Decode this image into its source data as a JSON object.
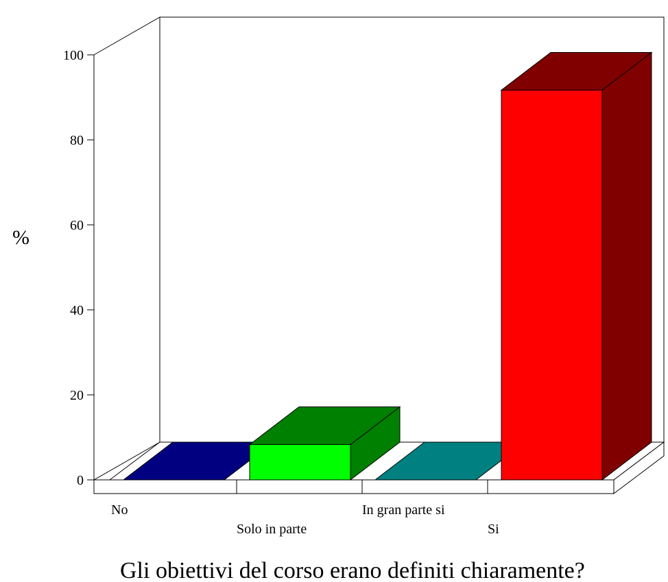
{
  "chart_data": {
    "type": "bar",
    "style": "3d",
    "title": "Gli obiettivi del corso erano definiti chiaramente?",
    "ylabel": "%",
    "xlabel": "",
    "ylim": [
      0,
      100
    ],
    "yticks": [
      "0",
      "20",
      "40",
      "60",
      "80",
      "100"
    ],
    "categories": [
      "No",
      "Solo in parte",
      "In gran parte si",
      "Si"
    ],
    "values": [
      0,
      8.3,
      0,
      91.7
    ],
    "colors": [
      {
        "front": "#00ff00",
        "top": "#000080",
        "side": "#000080"
      },
      {
        "front": "#00ff00",
        "top": "#008000",
        "side": "#008000"
      },
      {
        "front": "#008080",
        "top": "#008080",
        "side": "#008080"
      },
      {
        "front": "#ff0000",
        "top": "#800000",
        "side": "#800000"
      }
    ],
    "grid": false,
    "legend": "none"
  }
}
